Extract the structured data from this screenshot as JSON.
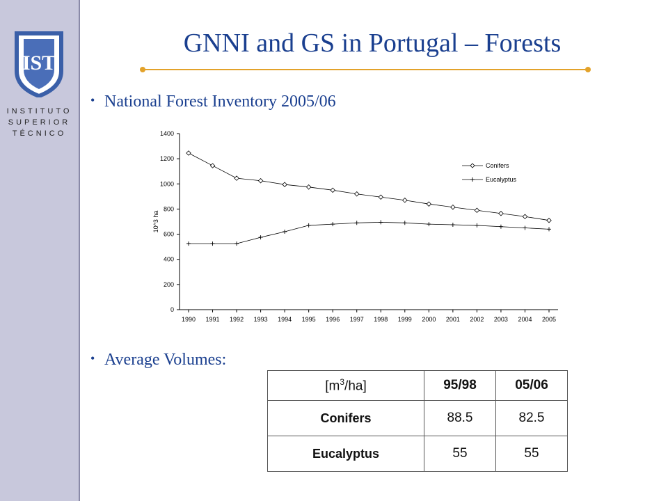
{
  "slide": {
    "title": "GNNI and GS in Portugal – Forests",
    "accent_color": "#e3a22a",
    "title_color": "#1a3f8f"
  },
  "logo": {
    "shield_text": "IST",
    "line1": "INSTITUTO",
    "line2": "SUPERIOR",
    "line3": "TÉCNICO"
  },
  "bullets": {
    "b1": "National Forest Inventory 2005/06",
    "b2": "Average Volumes:"
  },
  "chart_data": {
    "type": "line",
    "x": [
      "1990",
      "1991",
      "1992",
      "1993",
      "1994",
      "1995",
      "1996",
      "1997",
      "1998",
      "1999",
      "2000",
      "2001",
      "2002",
      "2003",
      "2004",
      "2005"
    ],
    "series": [
      {
        "name": "Conifers",
        "marker": "diamond",
        "values": [
          1245,
          1145,
          1045,
          1025,
          995,
          975,
          950,
          920,
          895,
          870,
          840,
          815,
          790,
          765,
          740,
          710
        ]
      },
      {
        "name": "Eucalyptus",
        "marker": "plus",
        "values": [
          525,
          525,
          525,
          575,
          620,
          670,
          680,
          690,
          695,
          690,
          680,
          675,
          670,
          660,
          650,
          640
        ]
      }
    ],
    "ylabel": "10^3 ha",
    "xlabel": "",
    "ylim": [
      0,
      1400
    ],
    "yticks": [
      0,
      200,
      400,
      600,
      800,
      1000,
      1200,
      1400
    ],
    "legend": "top-right",
    "grid": false
  },
  "table": {
    "header": {
      "unit_prefix": "[m",
      "unit_sup": "3",
      "unit_suffix": "/ha]",
      "col1": "95/98",
      "col2": "05/06"
    },
    "rows": [
      {
        "label": "Conifers",
        "v1": "88.5",
        "v2": "82.5"
      },
      {
        "label": "Eucalyptus",
        "v1": "55",
        "v2": "55"
      }
    ]
  }
}
